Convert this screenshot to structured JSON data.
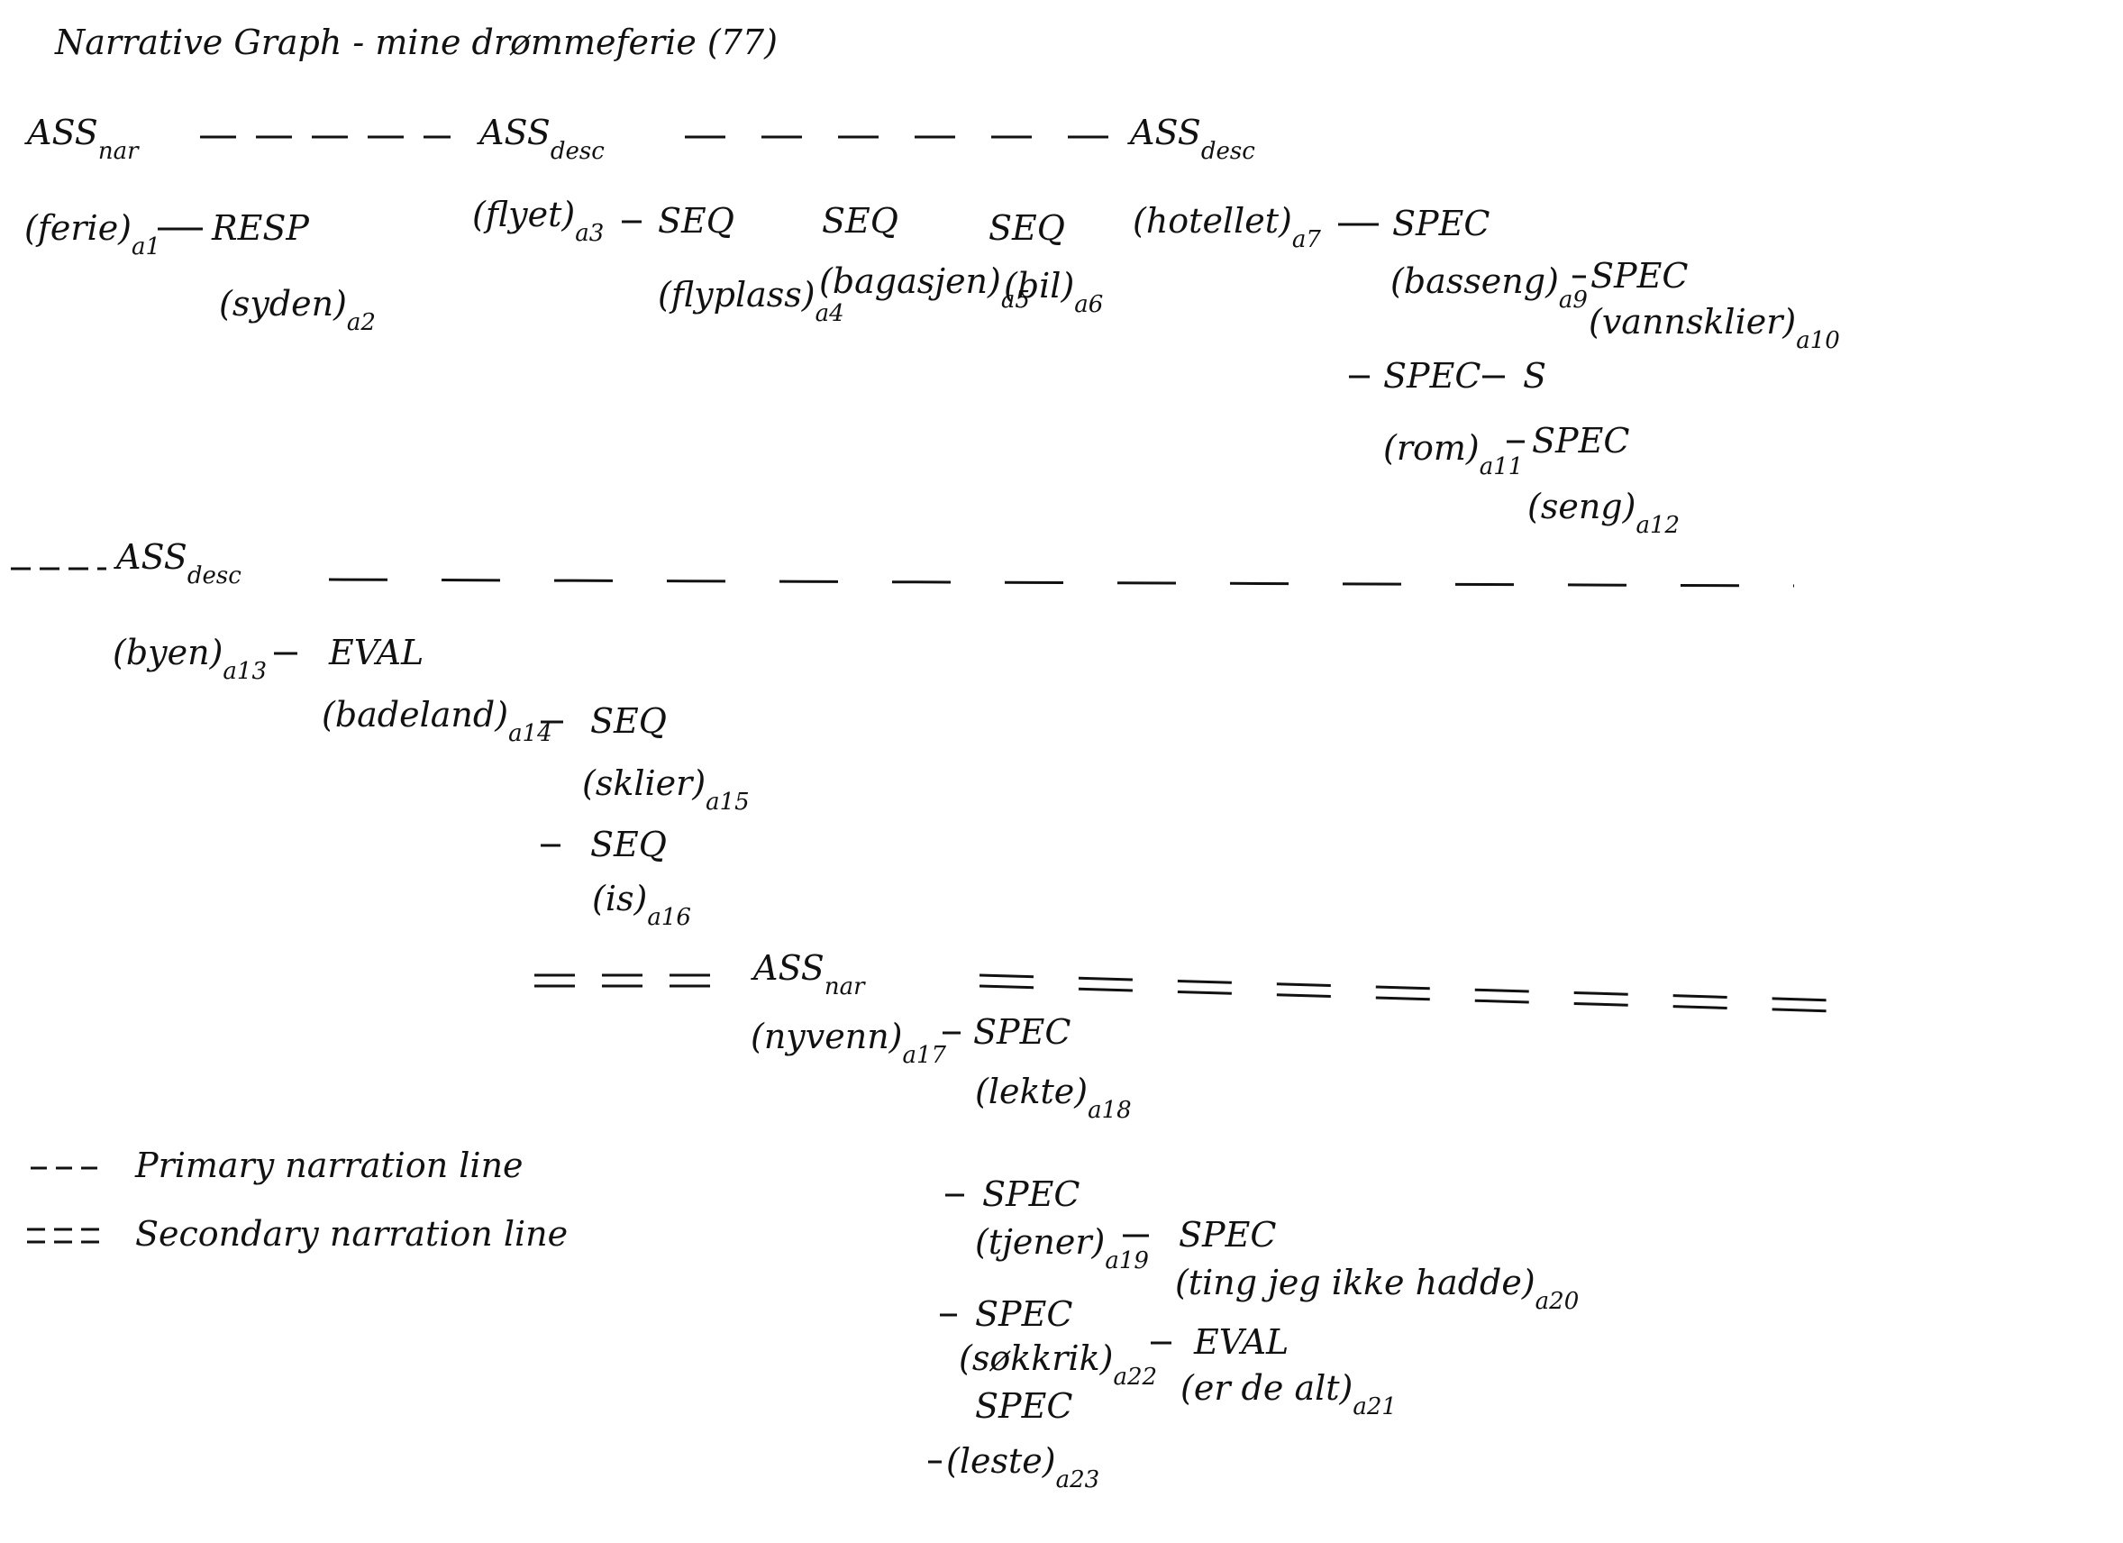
{
  "title": "Narrative Graph - mine drømmeferie (77)",
  "nodes": [
    {
      "label": "ASS",
      "sub": "nar"
    },
    {
      "label": "ASS",
      "sub": "desc"
    },
    {
      "label": "ASS",
      "sub": "desc"
    },
    {
      "label": "(ferie)",
      "sub": "a1"
    },
    {
      "label": "RESP"
    },
    {
      "label": "(syden)",
      "sub": "a2"
    },
    {
      "label": "(flyet)",
      "sub": "a3"
    },
    {
      "label": "SEQ"
    },
    {
      "label": "(flyplass)",
      "sub": "a4"
    },
    {
      "label": "SEQ"
    },
    {
      "label": "(bagasjen)",
      "sub": "a5"
    },
    {
      "label": "SEQ"
    },
    {
      "label": "(bil)",
      "sub": "a6"
    },
    {
      "label": "(hotellet)",
      "sub": "a7"
    },
    {
      "label": "SPEC"
    },
    {
      "label": "(basseng)",
      "sub": "a9"
    },
    {
      "label": "SPEC"
    },
    {
      "label": "(vannsklier)",
      "sub": "a10"
    },
    {
      "label": "SPEC"
    },
    {
      "label": "S"
    },
    {
      "label": "(rom)",
      "sub": "a11"
    },
    {
      "label": "SPEC"
    },
    {
      "label": "(seng)",
      "sub": "a12"
    },
    {
      "label": "ASS",
      "sub": "desc"
    },
    {
      "label": "(byen)",
      "sub": "a13"
    },
    {
      "label": "EVAL"
    },
    {
      "label": "(badeland)",
      "sub": "a14"
    },
    {
      "label": "SEQ"
    },
    {
      "label": "(sklier)",
      "sub": "a15"
    },
    {
      "label": "SEQ"
    },
    {
      "label": "(is)",
      "sub": "a16"
    },
    {
      "label": "ASS",
      "sub": "nar"
    },
    {
      "label": "(nyvenn)",
      "sub": "a17"
    },
    {
      "label": "SPEC"
    },
    {
      "label": "(lekte)",
      "sub": "a18"
    },
    {
      "label": "SPEC"
    },
    {
      "label": "(tjener)",
      "sub": "a19"
    },
    {
      "label": "SPEC"
    },
    {
      "label": "(ting jeg ikke hadde)",
      "sub": "a20"
    },
    {
      "label": "SPEC"
    },
    {
      "label": "(søkkrik)",
      "sub": "a22"
    },
    {
      "label": "EVAL"
    },
    {
      "label": "(er de alt)",
      "sub": "a21"
    },
    {
      "label": "SPEC"
    },
    {
      "label": "(leste)",
      "sub": "a23"
    }
  ],
  "legend": [
    {
      "label": "Primary narration line"
    },
    {
      "label": "Secondary narration line"
    }
  ]
}
